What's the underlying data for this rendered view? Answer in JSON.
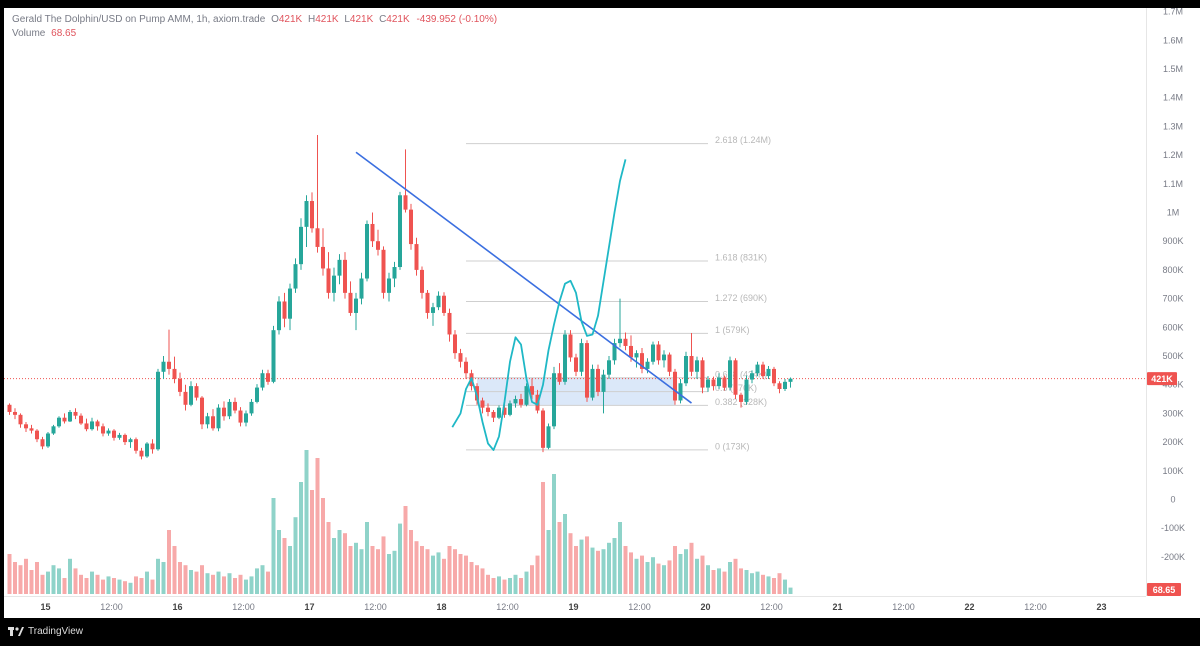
{
  "legend": {
    "symbol": "Gerald The Dolphin/USD on Pump AMM, 1h, axiom.trade",
    "o_label": "O",
    "o_value": "421K",
    "h_label": "H",
    "h_value": "421K",
    "l_label": "L",
    "l_value": "421K",
    "c_label": "C",
    "c_value": "421K",
    "change": "-439.952 (-0.10%)",
    "volume_label": "Volume",
    "volume_value": "68.65"
  },
  "colors": {
    "up": "#26a69a",
    "down": "#ef5350",
    "trendline": "#3b6fe0",
    "projection": "#1fb8c6",
    "zone": "#cfe0f7"
  },
  "footer": {
    "brand": "TradingView",
    "icon": "tradingview-logo-icon"
  },
  "chart_data": {
    "type": "candlestick",
    "price_axis_labels": [
      "1.7M",
      "1.6M",
      "1.5M",
      "1.4M",
      "1.3M",
      "1.2M",
      "1.1M",
      "1M",
      "900K",
      "800K",
      "700K",
      "600K",
      "500K",
      "400K",
      "300K",
      "200K",
      "100K",
      "0",
      "-100K",
      "-200K"
    ],
    "price_axis_values": [
      1700000,
      1600000,
      1500000,
      1400000,
      1300000,
      1200000,
      1100000,
      1000000,
      900000,
      800000,
      700000,
      600000,
      500000,
      400000,
      300000,
      200000,
      100000,
      0,
      -100000,
      -200000
    ],
    "last_price_label": "421K",
    "last_price": 421000,
    "last_volume_label": "68.65",
    "time_axis_labels": [
      {
        "t": 0,
        "text": "15",
        "bold": true
      },
      {
        "t": 12,
        "text": "12:00",
        "bold": false
      },
      {
        "t": 24,
        "text": "16",
        "bold": true
      },
      {
        "t": 36,
        "text": "12:00",
        "bold": false
      },
      {
        "t": 48,
        "text": "17",
        "bold": true
      },
      {
        "t": 60,
        "text": "12:00",
        "bold": false
      },
      {
        "t": 72,
        "text": "18",
        "bold": true
      },
      {
        "t": 84,
        "text": "12:00",
        "bold": false
      },
      {
        "t": 96,
        "text": "19",
        "bold": true
      },
      {
        "t": 108,
        "text": "12:00",
        "bold": false
      },
      {
        "t": 120,
        "text": "20",
        "bold": true
      },
      {
        "t": 132,
        "text": "12:00",
        "bold": false
      },
      {
        "t": 144,
        "text": "21",
        "bold": true
      },
      {
        "t": 156,
        "text": "12:00",
        "bold": false
      },
      {
        "t": 168,
        "text": "22",
        "bold": true
      },
      {
        "t": 180,
        "text": "12:00",
        "bold": false
      },
      {
        "t": 192,
        "text": "23",
        "bold": true
      }
    ],
    "fib_levels": [
      {
        "label": "2.618 (1.24M)",
        "value": 1240000
      },
      {
        "label": "1.618 (831K)",
        "value": 831000
      },
      {
        "label": "1.272 (690K)",
        "value": 690000
      },
      {
        "label": "1 (579K)",
        "value": 579000
      },
      {
        "label": "0.618 (424K)",
        "value": 424000
      },
      {
        "label": "0.5 (376K)",
        "value": 376000
      },
      {
        "label": "0.382 (328K)",
        "value": 328000
      },
      {
        "label": "0 (173K)",
        "value": 173000
      }
    ],
    "fib_range_t": [
      83,
      127
    ],
    "zone": {
      "t_start": 85,
      "t_end": 121,
      "top": 424000,
      "bottom": 328000
    },
    "trendline": {
      "t1": 63,
      "p1": 1210000,
      "t2": 124,
      "p2": 336000
    },
    "projection_path": [
      [
        80.5,
        252000
      ],
      [
        82,
        300000
      ],
      [
        83,
        385000
      ],
      [
        84,
        423000
      ],
      [
        85,
        360000
      ],
      [
        86,
        270000
      ],
      [
        87,
        195000
      ],
      [
        88,
        172000
      ],
      [
        89,
        220000
      ],
      [
        90,
        340000
      ],
      [
        91,
        480000
      ],
      [
        92,
        565000
      ],
      [
        93,
        540000
      ],
      [
        94,
        420000
      ],
      [
        95,
        340000
      ],
      [
        96,
        330000
      ],
      [
        97,
        400000
      ],
      [
        98,
        520000
      ],
      [
        99,
        610000
      ],
      [
        100,
        690000
      ],
      [
        101,
        752000
      ],
      [
        102,
        762000
      ],
      [
        103,
        720000
      ],
      [
        104,
        620000
      ],
      [
        105,
        570000
      ],
      [
        106,
        575000
      ],
      [
        107,
        640000
      ],
      [
        108,
        760000
      ],
      [
        109,
        880000
      ],
      [
        110,
        1000000
      ],
      [
        111,
        1110000
      ],
      [
        112,
        1185000
      ]
    ],
    "candles_ohlcv": [
      [
        330000,
        335000,
        295000,
        305000,
        25
      ],
      [
        305000,
        318000,
        280000,
        295000,
        20
      ],
      [
        295000,
        300000,
        250000,
        262000,
        18
      ],
      [
        262000,
        270000,
        235000,
        248000,
        22
      ],
      [
        248000,
        260000,
        230000,
        240000,
        15
      ],
      [
        240000,
        245000,
        200000,
        210000,
        20
      ],
      [
        210000,
        218000,
        175000,
        185000,
        12
      ],
      [
        185000,
        235000,
        180000,
        230000,
        14
      ],
      [
        230000,
        260000,
        225000,
        255000,
        18
      ],
      [
        255000,
        290000,
        250000,
        285000,
        16
      ],
      [
        285000,
        300000,
        265000,
        272000,
        10
      ],
      [
        272000,
        312000,
        270000,
        305000,
        22
      ],
      [
        305000,
        318000,
        280000,
        292000,
        16
      ],
      [
        292000,
        300000,
        260000,
        265000,
        12
      ],
      [
        265000,
        282000,
        238000,
        245000,
        10
      ],
      [
        245000,
        285000,
        240000,
        272000,
        14
      ],
      [
        272000,
        278000,
        240000,
        255000,
        12
      ],
      [
        255000,
        265000,
        220000,
        230000,
        9
      ],
      [
        230000,
        248000,
        222000,
        240000,
        11
      ],
      [
        240000,
        245000,
        205000,
        215000,
        10
      ],
      [
        215000,
        232000,
        208000,
        225000,
        9
      ],
      [
        225000,
        230000,
        190000,
        200000,
        8
      ],
      [
        200000,
        215000,
        180000,
        210000,
        7
      ],
      [
        210000,
        216000,
        160000,
        170000,
        11
      ],
      [
        170000,
        180000,
        140000,
        150000,
        10
      ],
      [
        150000,
        200000,
        145000,
        195000,
        14
      ],
      [
        195000,
        210000,
        160000,
        175000,
        9
      ],
      [
        175000,
        455000,
        170000,
        445000,
        22
      ],
      [
        445000,
        500000,
        420000,
        480000,
        20
      ],
      [
        480000,
        592000,
        435000,
        455000,
        40
      ],
      [
        455000,
        498000,
        405000,
        420000,
        30
      ],
      [
        420000,
        442000,
        360000,
        375000,
        20
      ],
      [
        375000,
        400000,
        310000,
        330000,
        18
      ],
      [
        330000,
        412000,
        325000,
        395000,
        15
      ],
      [
        395000,
        405000,
        345000,
        355000,
        14
      ],
      [
        355000,
        360000,
        245000,
        262000,
        18
      ],
      [
        262000,
        302000,
        248000,
        290000,
        13
      ],
      [
        290000,
        315000,
        240000,
        248000,
        12
      ],
      [
        248000,
        332000,
        238000,
        320000,
        14
      ],
      [
        320000,
        342000,
        275000,
        290000,
        11
      ],
      [
        290000,
        350000,
        280000,
        340000,
        13
      ],
      [
        340000,
        355000,
        300000,
        310000,
        10
      ],
      [
        310000,
        322000,
        255000,
        268000,
        12
      ],
      [
        268000,
        310000,
        255000,
        300000,
        9
      ],
      [
        300000,
        350000,
        292000,
        340000,
        11
      ],
      [
        340000,
        402000,
        335000,
        390000,
        16
      ],
      [
        390000,
        452000,
        380000,
        440000,
        18
      ],
      [
        440000,
        452000,
        400000,
        410000,
        14
      ],
      [
        410000,
        605000,
        405000,
        590000,
        60
      ],
      [
        590000,
        708000,
        575000,
        690000,
        40
      ],
      [
        690000,
        720000,
        600000,
        630000,
        35
      ],
      [
        630000,
        752000,
        590000,
        735000,
        30
      ],
      [
        735000,
        840000,
        720000,
        820000,
        48
      ],
      [
        820000,
        980000,
        800000,
        950000,
        70
      ],
      [
        950000,
        1060000,
        880000,
        1040000,
        90
      ],
      [
        1040000,
        1070000,
        930000,
        945000,
        65
      ],
      [
        945000,
        1270000,
        860000,
        880000,
        85
      ],
      [
        880000,
        945000,
        780000,
        805000,
        60
      ],
      [
        805000,
        862000,
        700000,
        720000,
        45
      ],
      [
        720000,
        808000,
        690000,
        780000,
        35
      ],
      [
        780000,
        855000,
        750000,
        835000,
        40
      ],
      [
        835000,
        862000,
        700000,
        720000,
        38
      ],
      [
        720000,
        760000,
        640000,
        650000,
        30
      ],
      [
        650000,
        720000,
        590000,
        700000,
        32
      ],
      [
        700000,
        790000,
        680000,
        770000,
        28
      ],
      [
        770000,
        972000,
        760000,
        960000,
        45
      ],
      [
        960000,
        1000000,
        880000,
        900000,
        30
      ],
      [
        900000,
        940000,
        850000,
        870000,
        28
      ],
      [
        870000,
        882000,
        700000,
        720000,
        36
      ],
      [
        720000,
        790000,
        690000,
        770000,
        25
      ],
      [
        770000,
        828000,
        740000,
        810000,
        27
      ],
      [
        810000,
        1072000,
        800000,
        1060000,
        44
      ],
      [
        1060000,
        1220000,
        1000000,
        1010000,
        55
      ],
      [
        1010000,
        1030000,
        870000,
        890000,
        40
      ],
      [
        890000,
        912000,
        780000,
        800000,
        33
      ],
      [
        800000,
        812000,
        700000,
        720000,
        30
      ],
      [
        720000,
        730000,
        630000,
        650000,
        28
      ],
      [
        650000,
        685000,
        605000,
        670000,
        24
      ],
      [
        670000,
        725000,
        660000,
        710000,
        26
      ],
      [
        710000,
        722000,
        640000,
        650000,
        22
      ],
      [
        650000,
        665000,
        550000,
        575000,
        30
      ],
      [
        575000,
        590000,
        490000,
        510000,
        28
      ],
      [
        510000,
        525000,
        460000,
        480000,
        25
      ],
      [
        480000,
        495000,
        420000,
        440000,
        24
      ],
      [
        440000,
        452000,
        380000,
        395000,
        20
      ],
      [
        395000,
        405000,
        330000,
        345000,
        18
      ],
      [
        345000,
        355000,
        300000,
        320000,
        16
      ],
      [
        320000,
        335000,
        290000,
        305000,
        12
      ],
      [
        305000,
        312000,
        270000,
        285000,
        10
      ],
      [
        285000,
        328000,
        280000,
        320000,
        11
      ],
      [
        320000,
        332000,
        285000,
        295000,
        9
      ],
      [
        295000,
        345000,
        290000,
        335000,
        10
      ],
      [
        335000,
        362000,
        320000,
        350000,
        12
      ],
      [
        350000,
        368000,
        320000,
        330000,
        10
      ],
      [
        330000,
        405000,
        325000,
        395000,
        14
      ],
      [
        395000,
        422000,
        350000,
        365000,
        18
      ],
      [
        365000,
        382000,
        300000,
        310000,
        24
      ],
      [
        310000,
        318000,
        165000,
        180000,
        70
      ],
      [
        180000,
        265000,
        175000,
        255000,
        40
      ],
      [
        255000,
        462000,
        245000,
        440000,
        75
      ],
      [
        440000,
        475000,
        400000,
        410000,
        45
      ],
      [
        410000,
        590000,
        400000,
        575000,
        50
      ],
      [
        575000,
        590000,
        480000,
        495000,
        38
      ],
      [
        495000,
        508000,
        430000,
        445000,
        30
      ],
      [
        445000,
        560000,
        430000,
        545000,
        34
      ],
      [
        545000,
        555000,
        340000,
        355000,
        36
      ],
      [
        355000,
        470000,
        345000,
        455000,
        29
      ],
      [
        455000,
        470000,
        360000,
        375000,
        27
      ],
      [
        375000,
        452000,
        300000,
        435000,
        28
      ],
      [
        435000,
        500000,
        420000,
        485000,
        32
      ],
      [
        485000,
        560000,
        470000,
        545000,
        35
      ],
      [
        545000,
        700000,
        530000,
        560000,
        45
      ],
      [
        560000,
        582000,
        520000,
        535000,
        30
      ],
      [
        535000,
        572000,
        480000,
        495000,
        26
      ],
      [
        495000,
        520000,
        460000,
        510000,
        22
      ],
      [
        510000,
        528000,
        440000,
        455000,
        24
      ],
      [
        455000,
        492000,
        440000,
        480000,
        20
      ],
      [
        480000,
        550000,
        470000,
        540000,
        23
      ],
      [
        540000,
        552000,
        470000,
        485000,
        19
      ],
      [
        485000,
        520000,
        460000,
        505000,
        18
      ],
      [
        505000,
        512000,
        430000,
        445000,
        21
      ],
      [
        445000,
        455000,
        330000,
        345000,
        30
      ],
      [
        345000,
        420000,
        335000,
        405000,
        25
      ],
      [
        405000,
        515000,
        395000,
        500000,
        28
      ],
      [
        500000,
        580000,
        430000,
        445000,
        32
      ],
      [
        445000,
        498000,
        420000,
        485000,
        22
      ],
      [
        485000,
        495000,
        370000,
        390000,
        24
      ],
      [
        390000,
        430000,
        375000,
        418000,
        18
      ],
      [
        418000,
        428000,
        380000,
        395000,
        15
      ],
      [
        395000,
        440000,
        385000,
        425000,
        16
      ],
      [
        425000,
        432000,
        380000,
        390000,
        14
      ],
      [
        390000,
        498000,
        380000,
        485000,
        20
      ],
      [
        485000,
        492000,
        350000,
        365000,
        22
      ],
      [
        365000,
        372000,
        320000,
        340000,
        16
      ],
      [
        340000,
        432000,
        330000,
        418000,
        15
      ],
      [
        418000,
        450000,
        405000,
        440000,
        13
      ],
      [
        440000,
        480000,
        430000,
        470000,
        14
      ],
      [
        470000,
        480000,
        420000,
        430000,
        12
      ],
      [
        430000,
        465000,
        420000,
        455000,
        11
      ],
      [
        455000,
        462000,
        395000,
        405000,
        10
      ],
      [
        405000,
        412000,
        370000,
        385000,
        13
      ],
      [
        385000,
        420000,
        378000,
        410000,
        9
      ],
      [
        410000,
        425000,
        390000,
        421000,
        4
      ]
    ]
  }
}
